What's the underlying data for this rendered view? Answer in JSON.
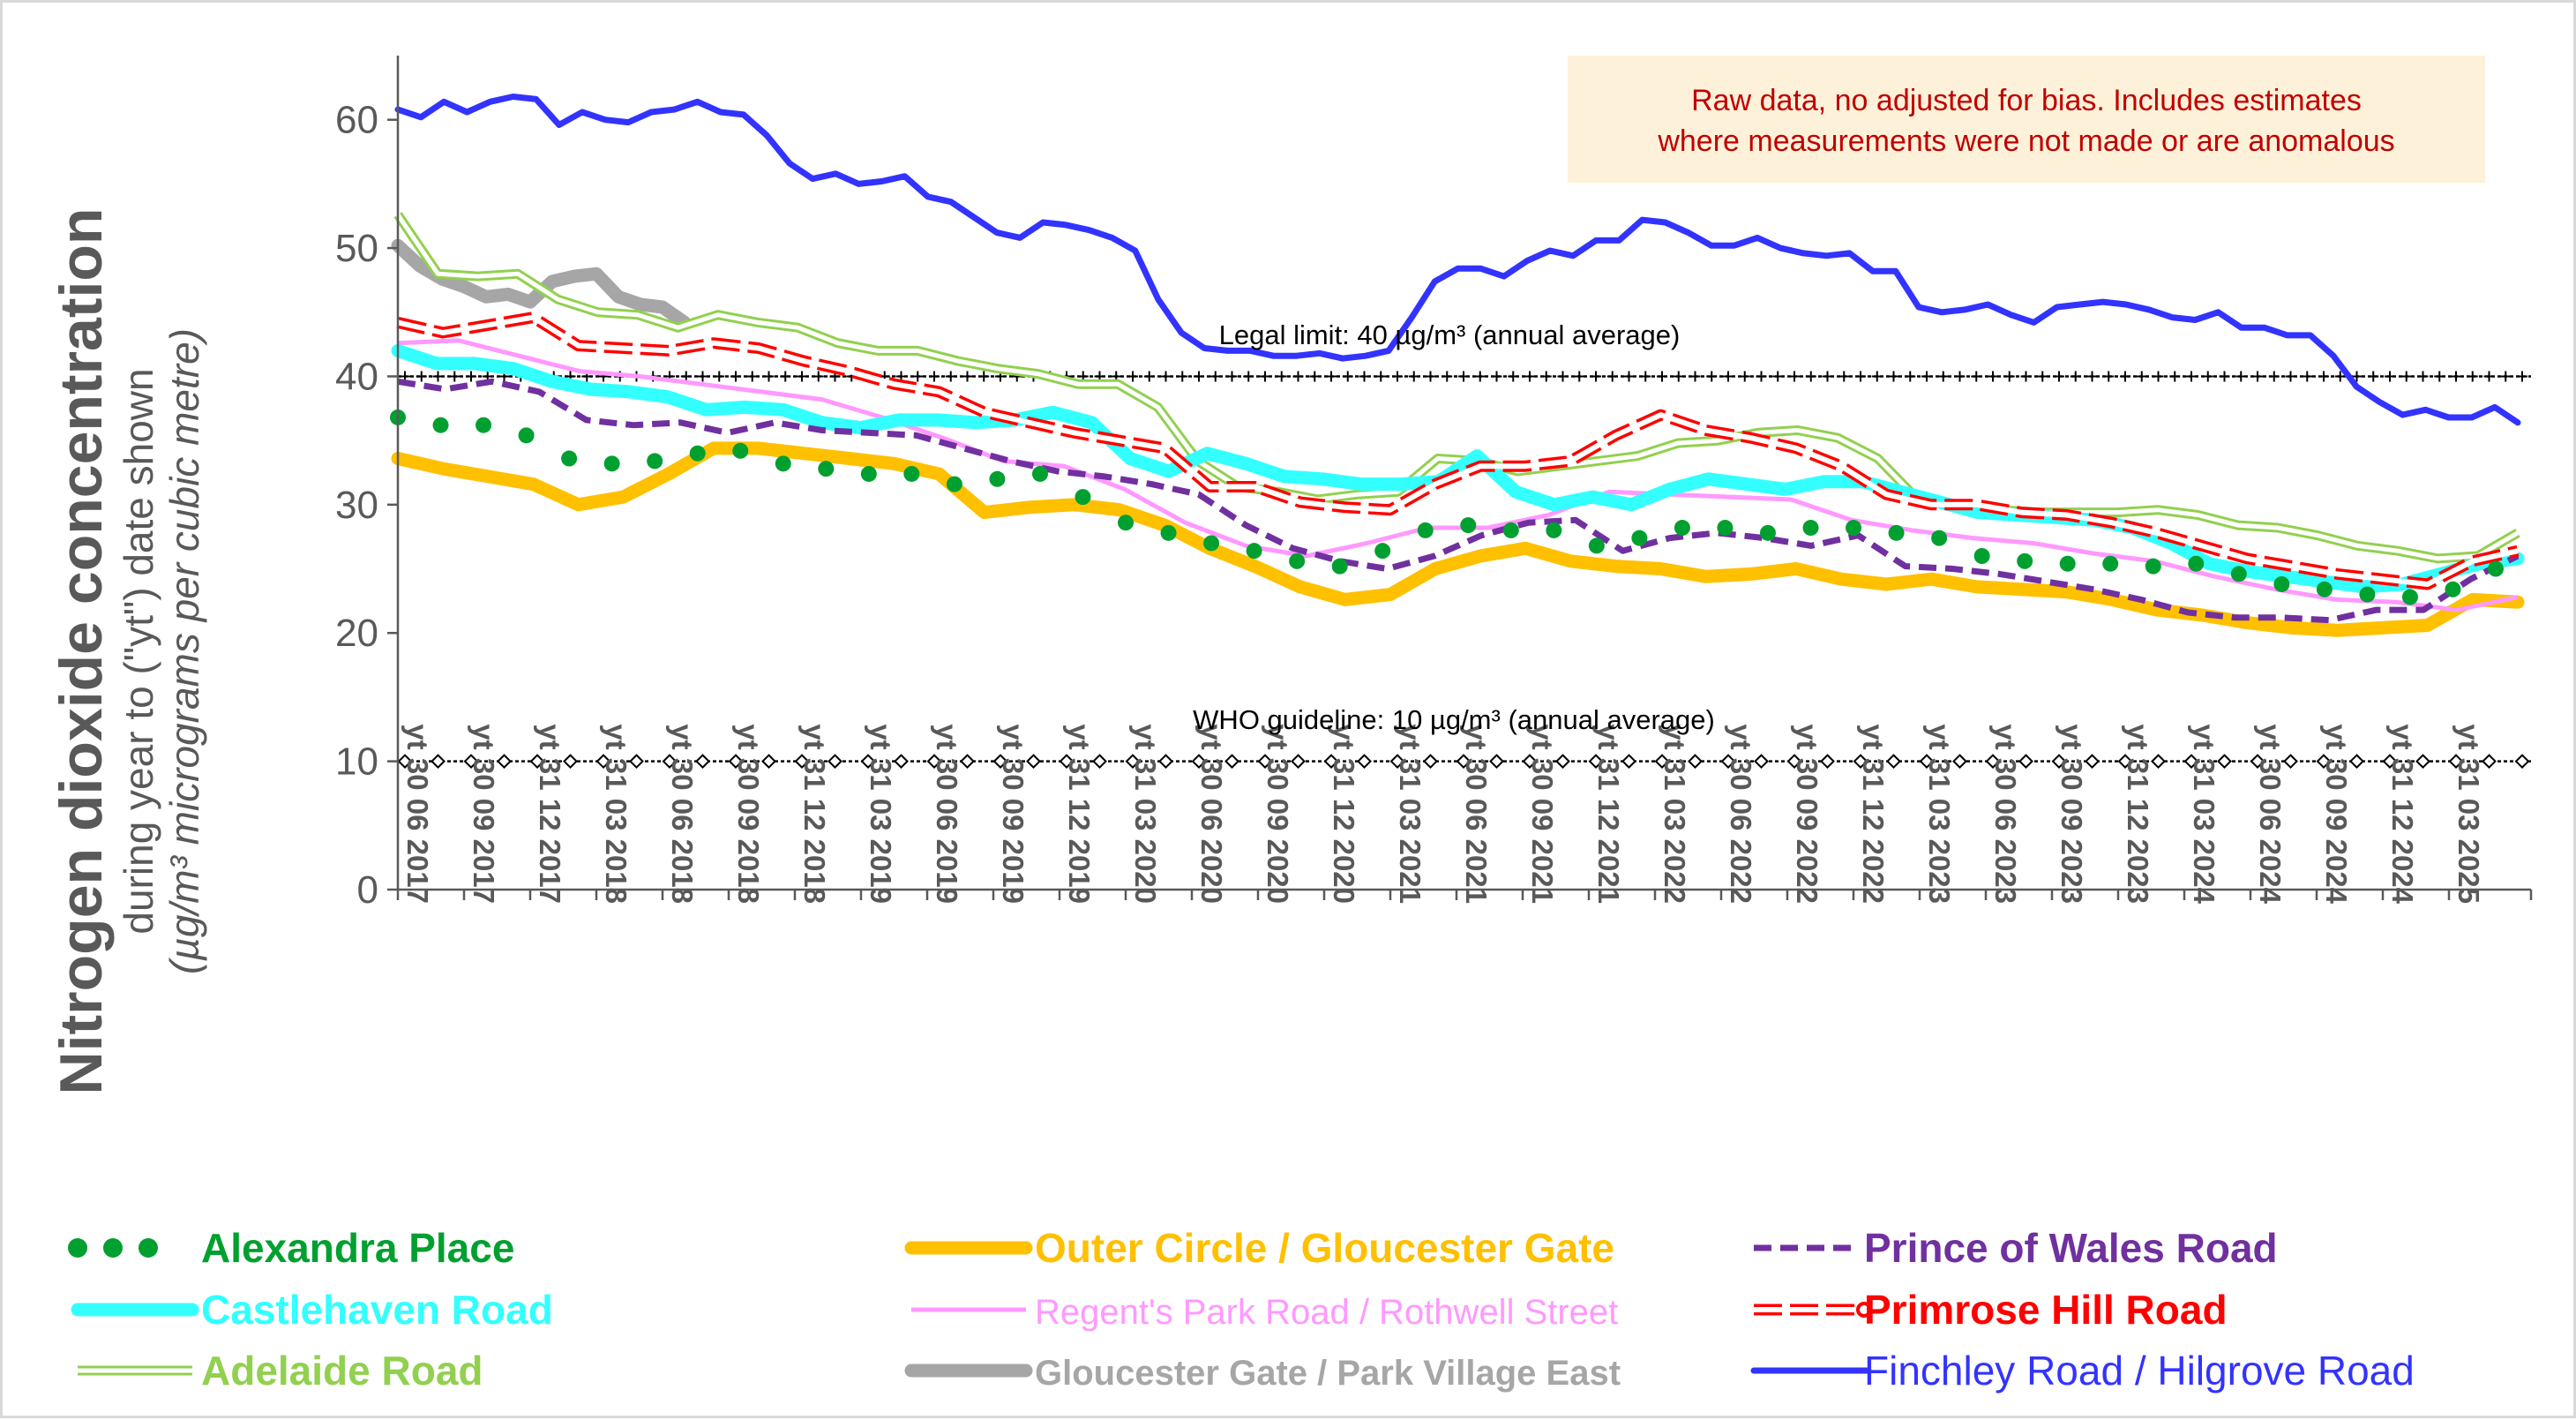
{
  "chart_data": {
    "type": "line",
    "ylabel": "Nitrogen dioxide concentration",
    "ylabel_sub": "during year to (\"yt\") date shown",
    "ylabel_units": "(µg/m³ micrograms per cubic metre)",
    "ylim": [
      0,
      65
    ],
    "yticks": [
      0,
      10,
      20,
      30,
      40,
      50,
      60
    ],
    "grid": false,
    "legend_position": "bottom",
    "x_tick_labels": [
      "yt 30 06 2017",
      "yt 30 09 2017",
      "yt 31 12 2017",
      "yt 31 03 2018",
      "yt 30 06 2018",
      "yt 30 09 2018",
      "yt 31 12 2018",
      "yt 31 03 2019",
      "yt 30 06 2019",
      "yt 30 09 2019",
      "yt 31 12 2019",
      "yt 31 03 2020",
      "yt 30 06 2020",
      "yt 30 09 2020",
      "yt 31 12 2020",
      "yt 31 03 2021",
      "yt 30 06 2021",
      "yt 30 09 2021",
      "yt 31 12 2021",
      "yt 31 03 2022",
      "yt 30 06 2022",
      "yt 30 09 2022",
      "yt 31 12 2022",
      "yt 31 03 2023",
      "yt 30 06 2023",
      "yt 30 09 2023",
      "yt 31 12 2023",
      "yt 31 03 2024",
      "yt 30 06 2024",
      "yt 30 09 2024",
      "yt 31 12 2024",
      "yt 31 03 2025"
    ],
    "reference_lines": [
      {
        "label": "Legal limit: 40 µg/m³ (annual average)",
        "value": 40,
        "color": "#000000",
        "marker": "plus"
      },
      {
        "label": "WHO guideline: 10 µg/m³ (annual average)",
        "value": 10,
        "color": "#000000",
        "marker": "diamond"
      }
    ],
    "annotation": [
      "Raw data, no adjusted for bias.  Includes estimates",
      "where measurements were not made or are anomalous"
    ],
    "series": [
      {
        "name": "Alexandra Place",
        "color": "#00a030",
        "style": "dots",
        "values": [
          36.8,
          36.2,
          36.2,
          35.4,
          33.6,
          33.2,
          33.4,
          34,
          34.2,
          33.2,
          32.8,
          32.4,
          32.4,
          31.6,
          32,
          32.4,
          30.6,
          28.6,
          27.8,
          27,
          26.4,
          25.6,
          25.2,
          26.4,
          28,
          28.4,
          28,
          28,
          26.8,
          27.4,
          28.2,
          28.2,
          27.8,
          28.2,
          28.2,
          27.8,
          27.4,
          26,
          25.6,
          25.4,
          25.4,
          25.2,
          25.4,
          24.6,
          23.8,
          23.4,
          23,
          22.8,
          23.4,
          25
        ]
      },
      {
        "name": "Castlehaven Road",
        "color": "#33ffff",
        "style": "thick",
        "values": [
          42,
          41,
          41,
          40.6,
          39.6,
          39,
          38.8,
          38.4,
          37.4,
          37.6,
          37.4,
          36.4,
          36,
          36.6,
          36.6,
          36.4,
          36.6,
          37.2,
          36.4,
          33.6,
          32.6,
          34,
          33.2,
          32.2,
          32,
          31.6,
          31.6,
          31.8,
          33.8,
          31,
          30,
          30.6,
          30,
          31.2,
          32,
          31.6,
          31.2,
          31.8,
          31.8,
          31,
          30.2,
          29.4,
          29.2,
          29,
          28.8,
          28.2,
          27,
          25.4,
          24.8,
          24.4,
          24,
          23.6,
          23.8,
          24.6,
          25.4,
          25.8
        ]
      },
      {
        "name": "Adelaide Road",
        "color": "#92d050",
        "style": "double",
        "values": [
          52.6,
          48,
          47.8,
          48,
          46,
          45,
          44.8,
          43.8,
          44.8,
          44.2,
          43.8,
          42.6,
          42,
          42,
          41.2,
          40.6,
          40.2,
          39.4,
          39.4,
          37.6,
          33.4,
          31.4,
          31,
          30.4,
          30.8,
          31,
          33.6,
          33.4,
          32.6,
          33,
          33.4,
          33.8,
          34.8,
          35,
          35.6,
          35.8,
          35.2,
          33.6,
          30.4,
          29.8,
          29.6,
          29.4,
          29.4,
          29.4,
          29.6,
          29.2,
          28.4,
          28.2,
          27.6,
          26.8,
          26.4,
          25.8,
          26,
          27.8
        ]
      },
      {
        "name": "Outer Circle / Gloucester Gate",
        "color": "#ffc000",
        "style": "thick",
        "values": [
          33.6,
          32.8,
          32.2,
          31.6,
          30,
          30.6,
          32.4,
          34.4,
          34.4,
          34,
          33.6,
          33.2,
          32.4,
          29.4,
          29.8,
          30,
          29.6,
          28.4,
          26.6,
          25.2,
          23.6,
          22.6,
          23,
          25,
          26,
          26.6,
          25.6,
          25.2,
          25,
          24.4,
          24.6,
          25,
          24.2,
          23.8,
          24.2,
          23.6,
          23.4,
          23.2,
          22.6,
          21.8,
          21.4,
          20.8,
          20.4,
          20.2,
          20.4,
          20.6,
          22.6,
          22.4
        ]
      },
      {
        "name": "Regent's Park Road / Rothwell Street",
        "color": "#ff99ff",
        "style": "thin",
        "values": [
          42.6,
          42.8,
          41.6,
          40.4,
          40,
          39.4,
          38.8,
          38.2,
          36.8,
          35.2,
          33.4,
          33,
          31.2,
          28.6,
          26.8,
          26,
          27,
          28.2,
          28.2,
          29.2,
          31,
          30.8,
          30.6,
          30.4,
          28.8,
          28,
          27.4,
          27,
          26.2,
          25.6,
          24.4,
          23.4,
          22.6,
          22.4,
          21.8,
          22.8
        ]
      },
      {
        "name": "Gloucester Gate / Park Village East",
        "color": "#a6a6a6",
        "style": "thick",
        "values": [
          50.2,
          48.6,
          47.6,
          47,
          46.2,
          46.4,
          45.8,
          47.4,
          47.8,
          48,
          46.2,
          45.6,
          45.4,
          44.2
        ]
      },
      {
        "name": "Prince of Wales Road",
        "color": "#7030a0",
        "style": "dashed",
        "values": [
          39.6,
          39,
          39.6,
          38.8,
          36.6,
          36.2,
          36.4,
          35.6,
          36.4,
          35.8,
          35.6,
          35.4,
          34.4,
          33.4,
          32.6,
          32.2,
          31.6,
          30.8,
          28.4,
          26.6,
          25.6,
          25,
          26,
          27.6,
          28.6,
          28.8,
          26.4,
          27.4,
          27.8,
          27.4,
          26.8,
          27.6,
          25.2,
          25,
          24.6,
          24,
          23.4,
          22.6,
          21.6,
          21.2,
          21.2,
          21,
          21.8,
          21.8,
          24.2,
          26
        ]
      },
      {
        "name": "Primrose Hill Road",
        "color": "#ff0000",
        "style": "redwhite",
        "values": [
          44.2,
          43.4,
          44,
          44.6,
          42.4,
          42.2,
          42,
          42.6,
          42.2,
          41.2,
          40.4,
          39.4,
          38.8,
          37.2,
          36.4,
          35.6,
          35,
          34.4,
          31.4,
          31.4,
          30.2,
          29.8,
          29.6,
          31.6,
          33,
          33,
          33.4,
          35.4,
          37,
          35.8,
          35.2,
          34.4,
          33,
          30.8,
          30,
          30,
          29.4,
          29.2,
          28.6,
          27.8,
          26.8,
          25.8,
          25.2,
          24.6,
          24.2,
          23.8,
          25.6,
          26.4
        ]
      },
      {
        "name": "Finchley Road / Hilgrove Road",
        "color": "#3333ff",
        "style": "solid",
        "values": [
          60.8,
          60.2,
          61.4,
          60.6,
          61.4,
          61.8,
          61.6,
          59.6,
          60.6,
          60,
          59.8,
          60.6,
          60.8,
          61.4,
          60.6,
          60.4,
          58.8,
          56.6,
          55.4,
          55.8,
          55,
          55.2,
          55.6,
          54,
          53.6,
          52.4,
          51.2,
          50.8,
          52,
          51.8,
          51.4,
          50.8,
          49.8,
          46,
          43.4,
          42.2,
          42,
          42,
          41.6,
          41.6,
          41.8,
          41.4,
          41.6,
          42,
          44.6,
          47.4,
          48.4,
          48.4,
          47.8,
          49,
          49.8,
          49.4,
          50.6,
          50.6,
          52.2,
          52,
          51.2,
          50.2,
          50.2,
          50.8,
          50,
          49.6,
          49.4,
          49.6,
          48.2,
          48.2,
          45.4,
          45,
          45.2,
          45.6,
          44.8,
          44.2,
          45.4,
          45.6,
          45.8,
          45.6,
          45.2,
          44.6,
          44.4,
          45,
          43.8,
          43.8,
          43.2,
          43.2,
          41.6,
          39.2,
          38,
          37,
          37.4,
          36.8,
          36.8,
          37.6,
          36.4
        ]
      }
    ]
  }
}
